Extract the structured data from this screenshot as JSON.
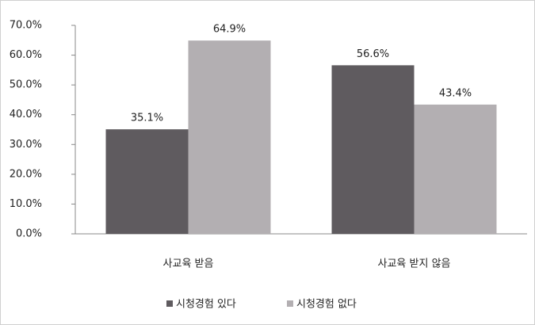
{
  "chart_data": {
    "type": "bar",
    "categories": [
      "사교육 받음",
      "사교육 받지 않음"
    ],
    "series": [
      {
        "name": "시청경험 있다",
        "color": "#5f5b5f",
        "values": [
          35.1,
          56.6
        ],
        "value_labels": [
          "35.1%",
          "56.6%"
        ]
      },
      {
        "name": "시청경험 없다",
        "color": "#b3afb2",
        "values": [
          64.9,
          43.4
        ],
        "value_labels": [
          "64.9%",
          "43.4%"
        ]
      }
    ],
    "ylim": [
      0,
      70
    ],
    "yticks": [
      {
        "value": 0,
        "label": "0.0%"
      },
      {
        "value": 10,
        "label": "10.0%"
      },
      {
        "value": 20,
        "label": "20.0%"
      },
      {
        "value": 30,
        "label": "30.0%"
      },
      {
        "value": 40,
        "label": "40.0%"
      },
      {
        "value": 50,
        "label": "50.0%"
      },
      {
        "value": 60,
        "label": "60.0%"
      },
      {
        "value": 70,
        "label": "70.0%"
      }
    ],
    "grid": false,
    "legend": "bottom"
  }
}
